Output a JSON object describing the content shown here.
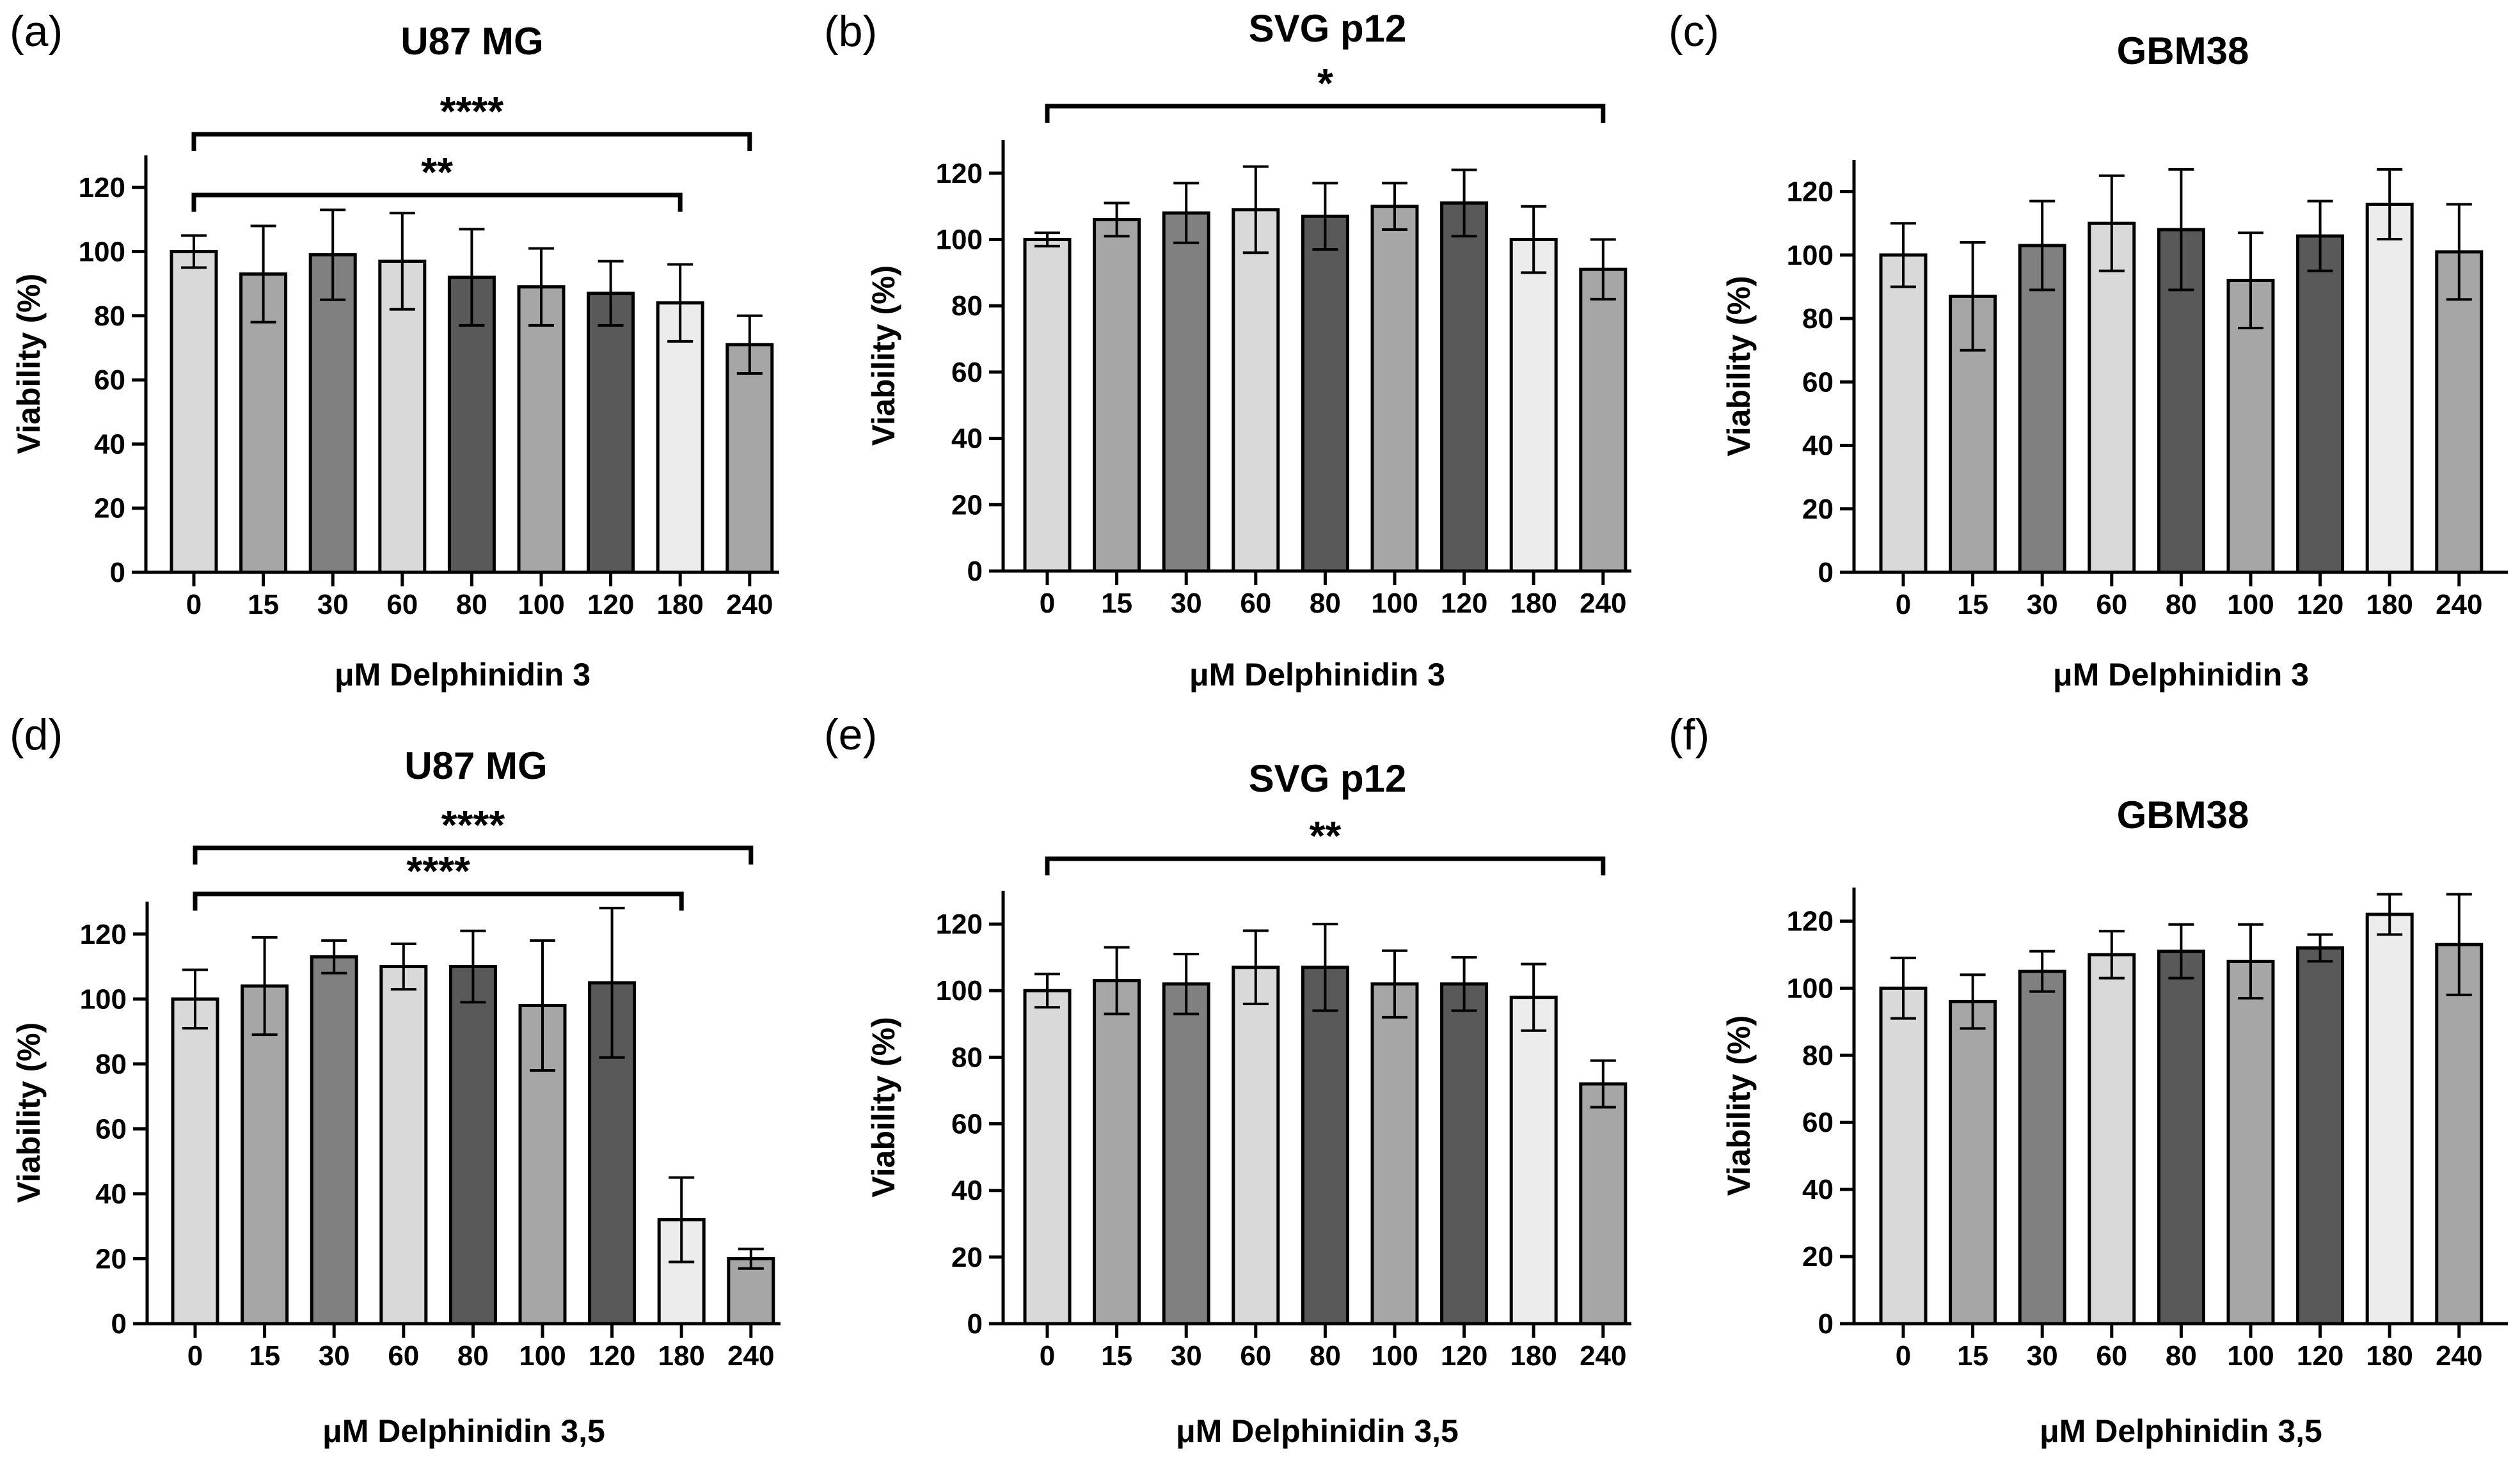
{
  "figure": {
    "y_ticks": [
      "0",
      "20",
      "40",
      "60",
      "80",
      "100",
      "120"
    ],
    "bar_colors": [
      "#d9d9d9",
      "#a6a6a6",
      "#808080",
      "#d9d9d9",
      "#595959",
      "#a6a6a6",
      "#595959",
      "#ececec",
      "#a6a6a6"
    ],
    "axis_color": "#000000"
  },
  "chart_data": [
    {
      "panel": "(a)",
      "type": "bar",
      "title": "U87 MG",
      "xlabel": "μM Delphinidin 3",
      "ylabel": "Viability (%)",
      "ylim": [
        0,
        130
      ],
      "categories": [
        "0",
        "15",
        "30",
        "60",
        "80",
        "100",
        "120",
        "180",
        "240"
      ],
      "values": [
        100,
        93,
        99,
        97,
        92,
        89,
        87,
        84,
        71
      ],
      "errors": [
        5,
        15,
        14,
        15,
        15,
        12,
        10,
        12,
        9
      ],
      "significance": [
        {
          "from": "0",
          "to": "180",
          "label": "**"
        },
        {
          "from": "0",
          "to": "240",
          "label": "****"
        }
      ]
    },
    {
      "panel": "(b)",
      "type": "bar",
      "title": "SVG p12",
      "xlabel": "μM Delphinidin 3",
      "ylabel": "Viability (%)",
      "ylim": [
        0,
        130
      ],
      "categories": [
        "0",
        "15",
        "30",
        "60",
        "80",
        "100",
        "120",
        "180",
        "240"
      ],
      "values": [
        100,
        106,
        108,
        109,
        107,
        110,
        111,
        100,
        91
      ],
      "errors": [
        2,
        5,
        9,
        13,
        10,
        7,
        10,
        10,
        9
      ],
      "significance": [
        {
          "from": "0",
          "to": "240",
          "label": "*"
        }
      ]
    },
    {
      "panel": "(c)",
      "type": "bar",
      "title": "GBM38",
      "xlabel": "μM Delphinidin 3",
      "ylabel": "Viability (%)",
      "ylim": [
        0,
        130
      ],
      "categories": [
        "0",
        "15",
        "30",
        "60",
        "80",
        "100",
        "120",
        "180",
        "240"
      ],
      "values": [
        100,
        87,
        103,
        110,
        108,
        92,
        106,
        116,
        101
      ],
      "errors": [
        10,
        17,
        14,
        15,
        19,
        15,
        11,
        11,
        15
      ],
      "significance": []
    },
    {
      "panel": "(d)",
      "type": "bar",
      "title": "U87 MG",
      "xlabel": "μM Delphinidin 3,5",
      "ylabel": "Viability (%)",
      "ylim": [
        0,
        130
      ],
      "categories": [
        "0",
        "15",
        "30",
        "60",
        "80",
        "100",
        "120",
        "180",
        "240"
      ],
      "values": [
        100,
        104,
        113,
        110,
        110,
        98,
        105,
        32,
        20
      ],
      "errors": [
        9,
        15,
        5,
        7,
        11,
        20,
        23,
        13,
        3
      ],
      "significance": [
        {
          "from": "0",
          "to": "180",
          "label": "****"
        },
        {
          "from": "0",
          "to": "240",
          "label": "****"
        }
      ]
    },
    {
      "panel": "(e)",
      "type": "bar",
      "title": "SVG p12",
      "xlabel": "μM Delphinidin 3,5",
      "ylabel": "Viability (%)",
      "ylim": [
        0,
        130
      ],
      "categories": [
        "0",
        "15",
        "30",
        "60",
        "80",
        "100",
        "120",
        "180",
        "240"
      ],
      "values": [
        100,
        103,
        102,
        107,
        107,
        102,
        102,
        98,
        72
      ],
      "errors": [
        5,
        10,
        9,
        11,
        13,
        10,
        8,
        10,
        7
      ],
      "significance": [
        {
          "from": "0",
          "to": "240",
          "label": "**"
        }
      ]
    },
    {
      "panel": "(f)",
      "type": "bar",
      "title": "GBM38",
      "xlabel": "μM Delphinidin 3,5",
      "ylabel": "Viability (%)",
      "ylim": [
        0,
        130
      ],
      "categories": [
        "0",
        "15",
        "30",
        "60",
        "80",
        "100",
        "120",
        "180",
        "240"
      ],
      "values": [
        100,
        96,
        105,
        110,
        111,
        108,
        112,
        122,
        113
      ],
      "errors": [
        9,
        8,
        6,
        7,
        8,
        11,
        4,
        6,
        15
      ],
      "significance": []
    }
  ]
}
